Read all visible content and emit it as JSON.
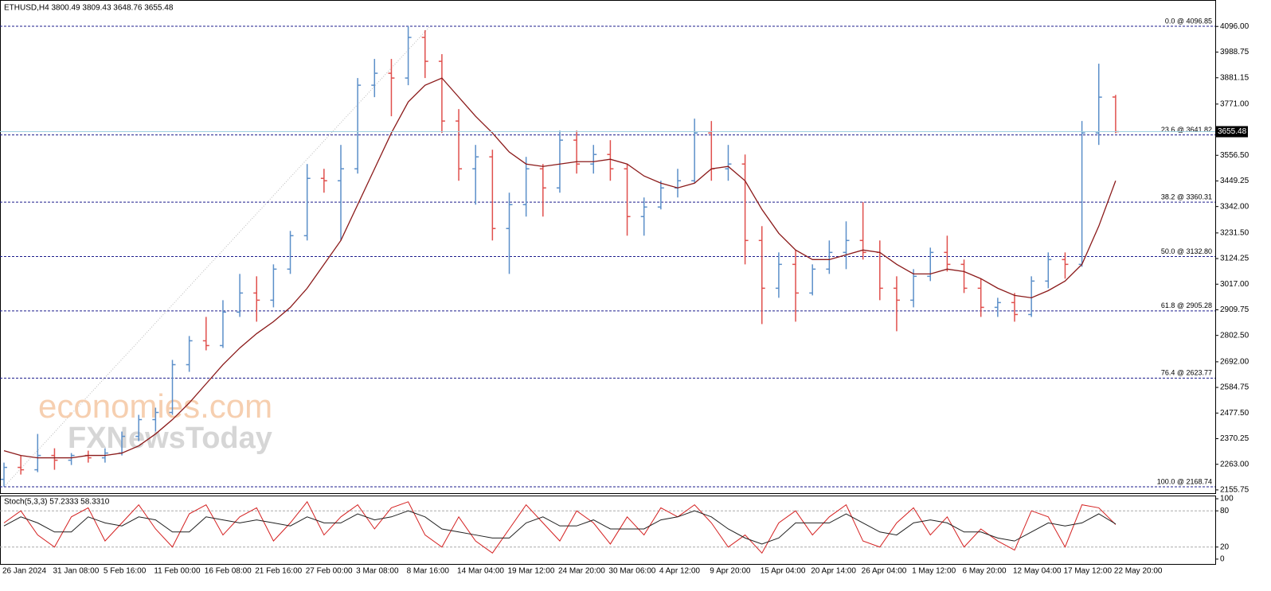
{
  "chart_data": [
    {
      "type": "ohlc",
      "title": "ETHUSD,H4  3800.49 3809.43 3648.76 3655.48",
      "watermark": [
        "economies.com",
        "FXNewsToday"
      ],
      "categories": [
        "26 Jan 2024",
        null,
        null,
        "31 Jan 08:00",
        null,
        null,
        "5 Feb 16:00",
        null,
        null,
        "11 Feb 00:00",
        null,
        null,
        "16 Feb 08:00",
        null,
        null,
        "21 Feb 16:00",
        null,
        null,
        "27 Feb 00:00",
        null,
        null,
        "3 Mar 08:00",
        null,
        null,
        "8 Mar 16:00",
        null,
        null,
        "14 Mar 04:00",
        null,
        null,
        "19 Mar 12:00",
        null,
        null,
        "24 Mar 20:00",
        null,
        null,
        "30 Mar 06:00",
        null,
        null,
        "4 Apr 12:00",
        null,
        null,
        "9 Apr 20:00",
        null,
        null,
        "15 Apr 04:00",
        null,
        null,
        "20 Apr 14:00",
        null,
        null,
        "26 Apr 04:00",
        null,
        null,
        "1 May 12:00",
        null,
        null,
        "6 May 20:00",
        null,
        null,
        "12 May 04:00",
        null,
        null,
        "17 May 12:00",
        null,
        null,
        "22 May 20:00"
      ],
      "open": [
        2200,
        2250,
        2240,
        2300,
        2280,
        2300,
        2290,
        2310,
        2380,
        2450,
        2480,
        2680,
        2780,
        2760,
        2900,
        2980,
        2950,
        3080,
        3220,
        3460,
        3450,
        3500,
        3850,
        3900,
        3880,
        4050,
        3950,
        3700,
        3500,
        3550,
        3250,
        3350,
        3500,
        3420,
        3620,
        3520,
        3560,
        3500,
        3300,
        3340,
        3420,
        3450,
        3650,
        3500,
        3520,
        3200,
        3000,
        3100,
        2980,
        3080,
        3150,
        3200,
        3150,
        3000,
        2950,
        3050,
        3150,
        3100,
        3000,
        2920,
        2940,
        2890,
        3030,
        3120,
        3100,
        3650,
        3800.49
      ],
      "high": [
        2270,
        2300,
        2390,
        2330,
        2310,
        2320,
        2330,
        2400,
        2470,
        2500,
        2700,
        2800,
        2880,
        2950,
        3060,
        3050,
        3100,
        3240,
        3520,
        3500,
        3600,
        3880,
        3960,
        3960,
        4096.85,
        4080,
        3980,
        3750,
        3600,
        3580,
        3400,
        3550,
        3520,
        3660,
        3660,
        3600,
        3620,
        3520,
        3380,
        3450,
        3500,
        3710,
        3700,
        3600,
        3560,
        3260,
        3150,
        3160,
        3100,
        3200,
        3280,
        3360,
        3200,
        3050,
        3080,
        3170,
        3220,
        3120,
        3040,
        2960,
        2980,
        3050,
        3150,
        3150,
        3700,
        3940,
        3809.43
      ],
      "low": [
        2170,
        2220,
        2230,
        2240,
        2260,
        2270,
        2270,
        2300,
        2360,
        2400,
        2470,
        2650,
        2740,
        2750,
        2880,
        2860,
        2920,
        3060,
        3200,
        3400,
        3200,
        3480,
        3800,
        3720,
        3850,
        3880,
        3650,
        3450,
        3350,
        3200,
        3060,
        3300,
        3300,
        3400,
        3480,
        3480,
        3450,
        3220,
        3220,
        3330,
        3380,
        3440,
        3450,
        3450,
        3100,
        2850,
        2960,
        2860,
        2970,
        3060,
        3080,
        3120,
        2950,
        2820,
        2920,
        3030,
        3070,
        2980,
        2880,
        2880,
        2860,
        2880,
        3000,
        3040,
        3090,
        3600,
        3648.76
      ],
      "close": [
        2250,
        2240,
        2300,
        2280,
        2300,
        2290,
        2310,
        2380,
        2450,
        2480,
        2680,
        2780,
        2760,
        2900,
        2980,
        2950,
        3080,
        3220,
        3460,
        3450,
        3500,
        3850,
        3900,
        3880,
        4050,
        3950,
        3700,
        3500,
        3550,
        3250,
        3350,
        3500,
        3420,
        3620,
        3520,
        3560,
        3500,
        3300,
        3340,
        3420,
        3450,
        3650,
        3500,
        3520,
        3200,
        3000,
        3100,
        2980,
        3080,
        3150,
        3200,
        3150,
        3000,
        2950,
        3050,
        3150,
        3100,
        3000,
        2920,
        2940,
        2890,
        3030,
        3120,
        3100,
        3650,
        3800,
        3655.48
      ],
      "up_color": "#5b8fc9",
      "down_color": "#e0504d",
      "moving_average": {
        "color": "#8b1a1a",
        "values": [
          2320,
          2300,
          2290,
          2290,
          2290,
          2300,
          2300,
          2310,
          2340,
          2390,
          2450,
          2520,
          2600,
          2680,
          2750,
          2810,
          2860,
          2920,
          3000,
          3100,
          3200,
          3350,
          3500,
          3650,
          3780,
          3850,
          3880,
          3800,
          3720,
          3650,
          3570,
          3520,
          3510,
          3520,
          3530,
          3530,
          3540,
          3520,
          3470,
          3440,
          3420,
          3440,
          3500,
          3510,
          3450,
          3330,
          3230,
          3160,
          3120,
          3120,
          3140,
          3160,
          3150,
          3100,
          3060,
          3060,
          3080,
          3070,
          3040,
          3000,
          2970,
          2960,
          2990,
          3030,
          3100,
          3260,
          3450
        ]
      },
      "fib_color": "#1c1c8c",
      "fib_levels": [
        {
          "value": 4096.85,
          "label": "0.0 @ 4096.85"
        },
        {
          "value": 3641.82,
          "label": "23.6 @ 3641.82"
        },
        {
          "value": 3360.31,
          "label": "38.2 @ 3360.31"
        },
        {
          "value": 3132.8,
          "label": "50.0 @ 3132.80"
        },
        {
          "value": 2905.28,
          "label": "61.8 @ 2905.28"
        },
        {
          "value": 2623.77,
          "label": "76.4 @ 2623.77"
        },
        {
          "value": 2168.74,
          "label": "100.0 @ 2168.74"
        }
      ],
      "last_price": 3655.48,
      "grid": false,
      "ylim": [
        2142.1,
        4206.7
      ],
      "yticks": [
        {
          "value": 4096,
          "label": "4096.00"
        },
        {
          "value": 3988.75,
          "label": "3988.75"
        },
        {
          "value": 3881.15,
          "label": "3881.15"
        },
        {
          "value": 3771,
          "label": "3771.00"
        },
        {
          "value": 3556.5,
          "label": "3556.50"
        },
        {
          "value": 3449.25,
          "label": "3449.25"
        },
        {
          "value": 3342,
          "label": "3342.00"
        },
        {
          "value": 3231.5,
          "label": "3231.50"
        },
        {
          "value": 3124.25,
          "label": "3124.25"
        },
        {
          "value": 3017,
          "label": "3017.00"
        },
        {
          "value": 2909.75,
          "label": "2909.75"
        },
        {
          "value": 2802.5,
          "label": "2802.50"
        },
        {
          "value": 2692,
          "label": "2692.00"
        },
        {
          "value": 2584.75,
          "label": "2584.75"
        },
        {
          "value": 2477.5,
          "label": "2477.50"
        },
        {
          "value": 2370.25,
          "label": "2370.25"
        },
        {
          "value": 2263,
          "label": "2263.00"
        },
        {
          "value": 2155.75,
          "label": "2155.75"
        }
      ]
    },
    {
      "type": "line",
      "title": "Stoch(5,3,3) 57.2333 58.3310",
      "series": [
        {
          "color": "#d42020",
          "values": [
            60,
            80,
            40,
            20,
            70,
            85,
            30,
            60,
            90,
            50,
            20,
            75,
            90,
            40,
            70,
            85,
            30,
            60,
            95,
            40,
            70,
            90,
            50,
            85,
            95,
            40,
            20,
            70,
            30,
            10,
            50,
            90,
            60,
            30,
            80,
            60,
            25,
            70,
            40,
            85,
            70,
            90,
            60,
            20,
            40,
            10,
            60,
            80,
            40,
            70,
            90,
            30,
            20,
            60,
            85,
            40,
            70,
            20,
            50,
            30,
            15,
            80,
            70,
            20,
            90,
            85,
            57.2333
          ]
        },
        {
          "color": "#202020",
          "values": [
            55,
            70,
            60,
            45,
            45,
            70,
            60,
            55,
            70,
            65,
            45,
            45,
            70,
            65,
            60,
            65,
            60,
            55,
            70,
            60,
            60,
            75,
            65,
            70,
            80,
            70,
            50,
            45,
            40,
            35,
            35,
            60,
            70,
            55,
            55,
            65,
            50,
            50,
            50,
            65,
            70,
            80,
            70,
            50,
            35,
            25,
            35,
            60,
            60,
            60,
            75,
            60,
            45,
            40,
            60,
            65,
            60,
            45,
            45,
            35,
            30,
            45,
            60,
            55,
            60,
            75,
            58.331
          ]
        }
      ],
      "levels": [
        80,
        20
      ],
      "ylim": [
        -6.7,
        104
      ],
      "yticks": [
        100,
        80,
        20,
        0
      ]
    }
  ]
}
